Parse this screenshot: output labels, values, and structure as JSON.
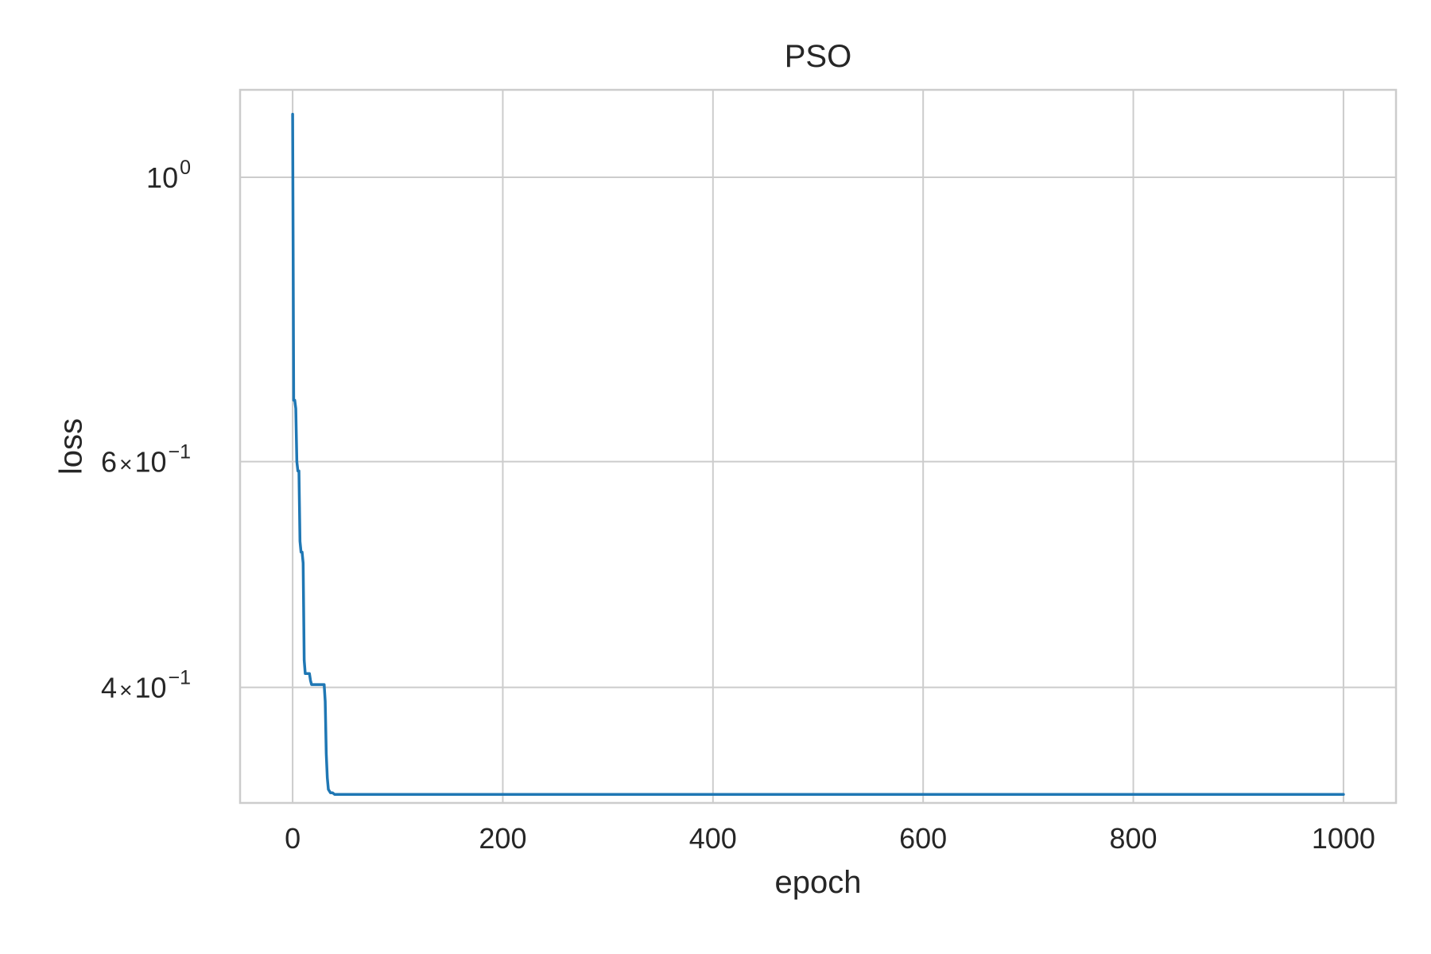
{
  "chart_data": {
    "type": "line",
    "title": "PSO",
    "xlabel": "epoch",
    "ylabel": "loss",
    "xlim": [
      -50,
      1050
    ],
    "ylim": [
      0.325,
      1.17
    ],
    "yscale": "log",
    "grid": true,
    "xticks": [
      {
        "value": 0,
        "label": "0"
      },
      {
        "value": 200,
        "label": "200"
      },
      {
        "value": 400,
        "label": "400"
      },
      {
        "value": 600,
        "label": "600"
      },
      {
        "value": 800,
        "label": "800"
      },
      {
        "value": 1000,
        "label": "1000"
      }
    ],
    "yticks": [
      {
        "value": 1.0,
        "mantissa": "",
        "base": "10",
        "exponent": "0"
      },
      {
        "value": 0.6,
        "mantissa": "6",
        "base": "10",
        "exponent": "−1"
      },
      {
        "value": 0.4,
        "mantissa": "4",
        "base": "10",
        "exponent": "−1"
      }
    ],
    "series": [
      {
        "color": "#1f77b4",
        "x": [
          0,
          1,
          2,
          3,
          4,
          5,
          6,
          7,
          8,
          9,
          10,
          11,
          12,
          13,
          14,
          15,
          16,
          17,
          18,
          19,
          20,
          22,
          25,
          28,
          30,
          31,
          32,
          33,
          34,
          35,
          36,
          38,
          40,
          45,
          50,
          100,
          200,
          300,
          400,
          500,
          600,
          700,
          800,
          900,
          1000
        ],
        "y": [
          1.12,
          0.67,
          0.67,
          0.66,
          0.6,
          0.59,
          0.59,
          0.52,
          0.51,
          0.51,
          0.5,
          0.42,
          0.41,
          0.41,
          0.41,
          0.41,
          0.41,
          0.405,
          0.402,
          0.402,
          0.402,
          0.402,
          0.402,
          0.402,
          0.402,
          0.39,
          0.355,
          0.34,
          0.333,
          0.332,
          0.331,
          0.331,
          0.33,
          0.33,
          0.33,
          0.33,
          0.33,
          0.33,
          0.33,
          0.33,
          0.33,
          0.33,
          0.33,
          0.33,
          0.33
        ]
      }
    ]
  }
}
